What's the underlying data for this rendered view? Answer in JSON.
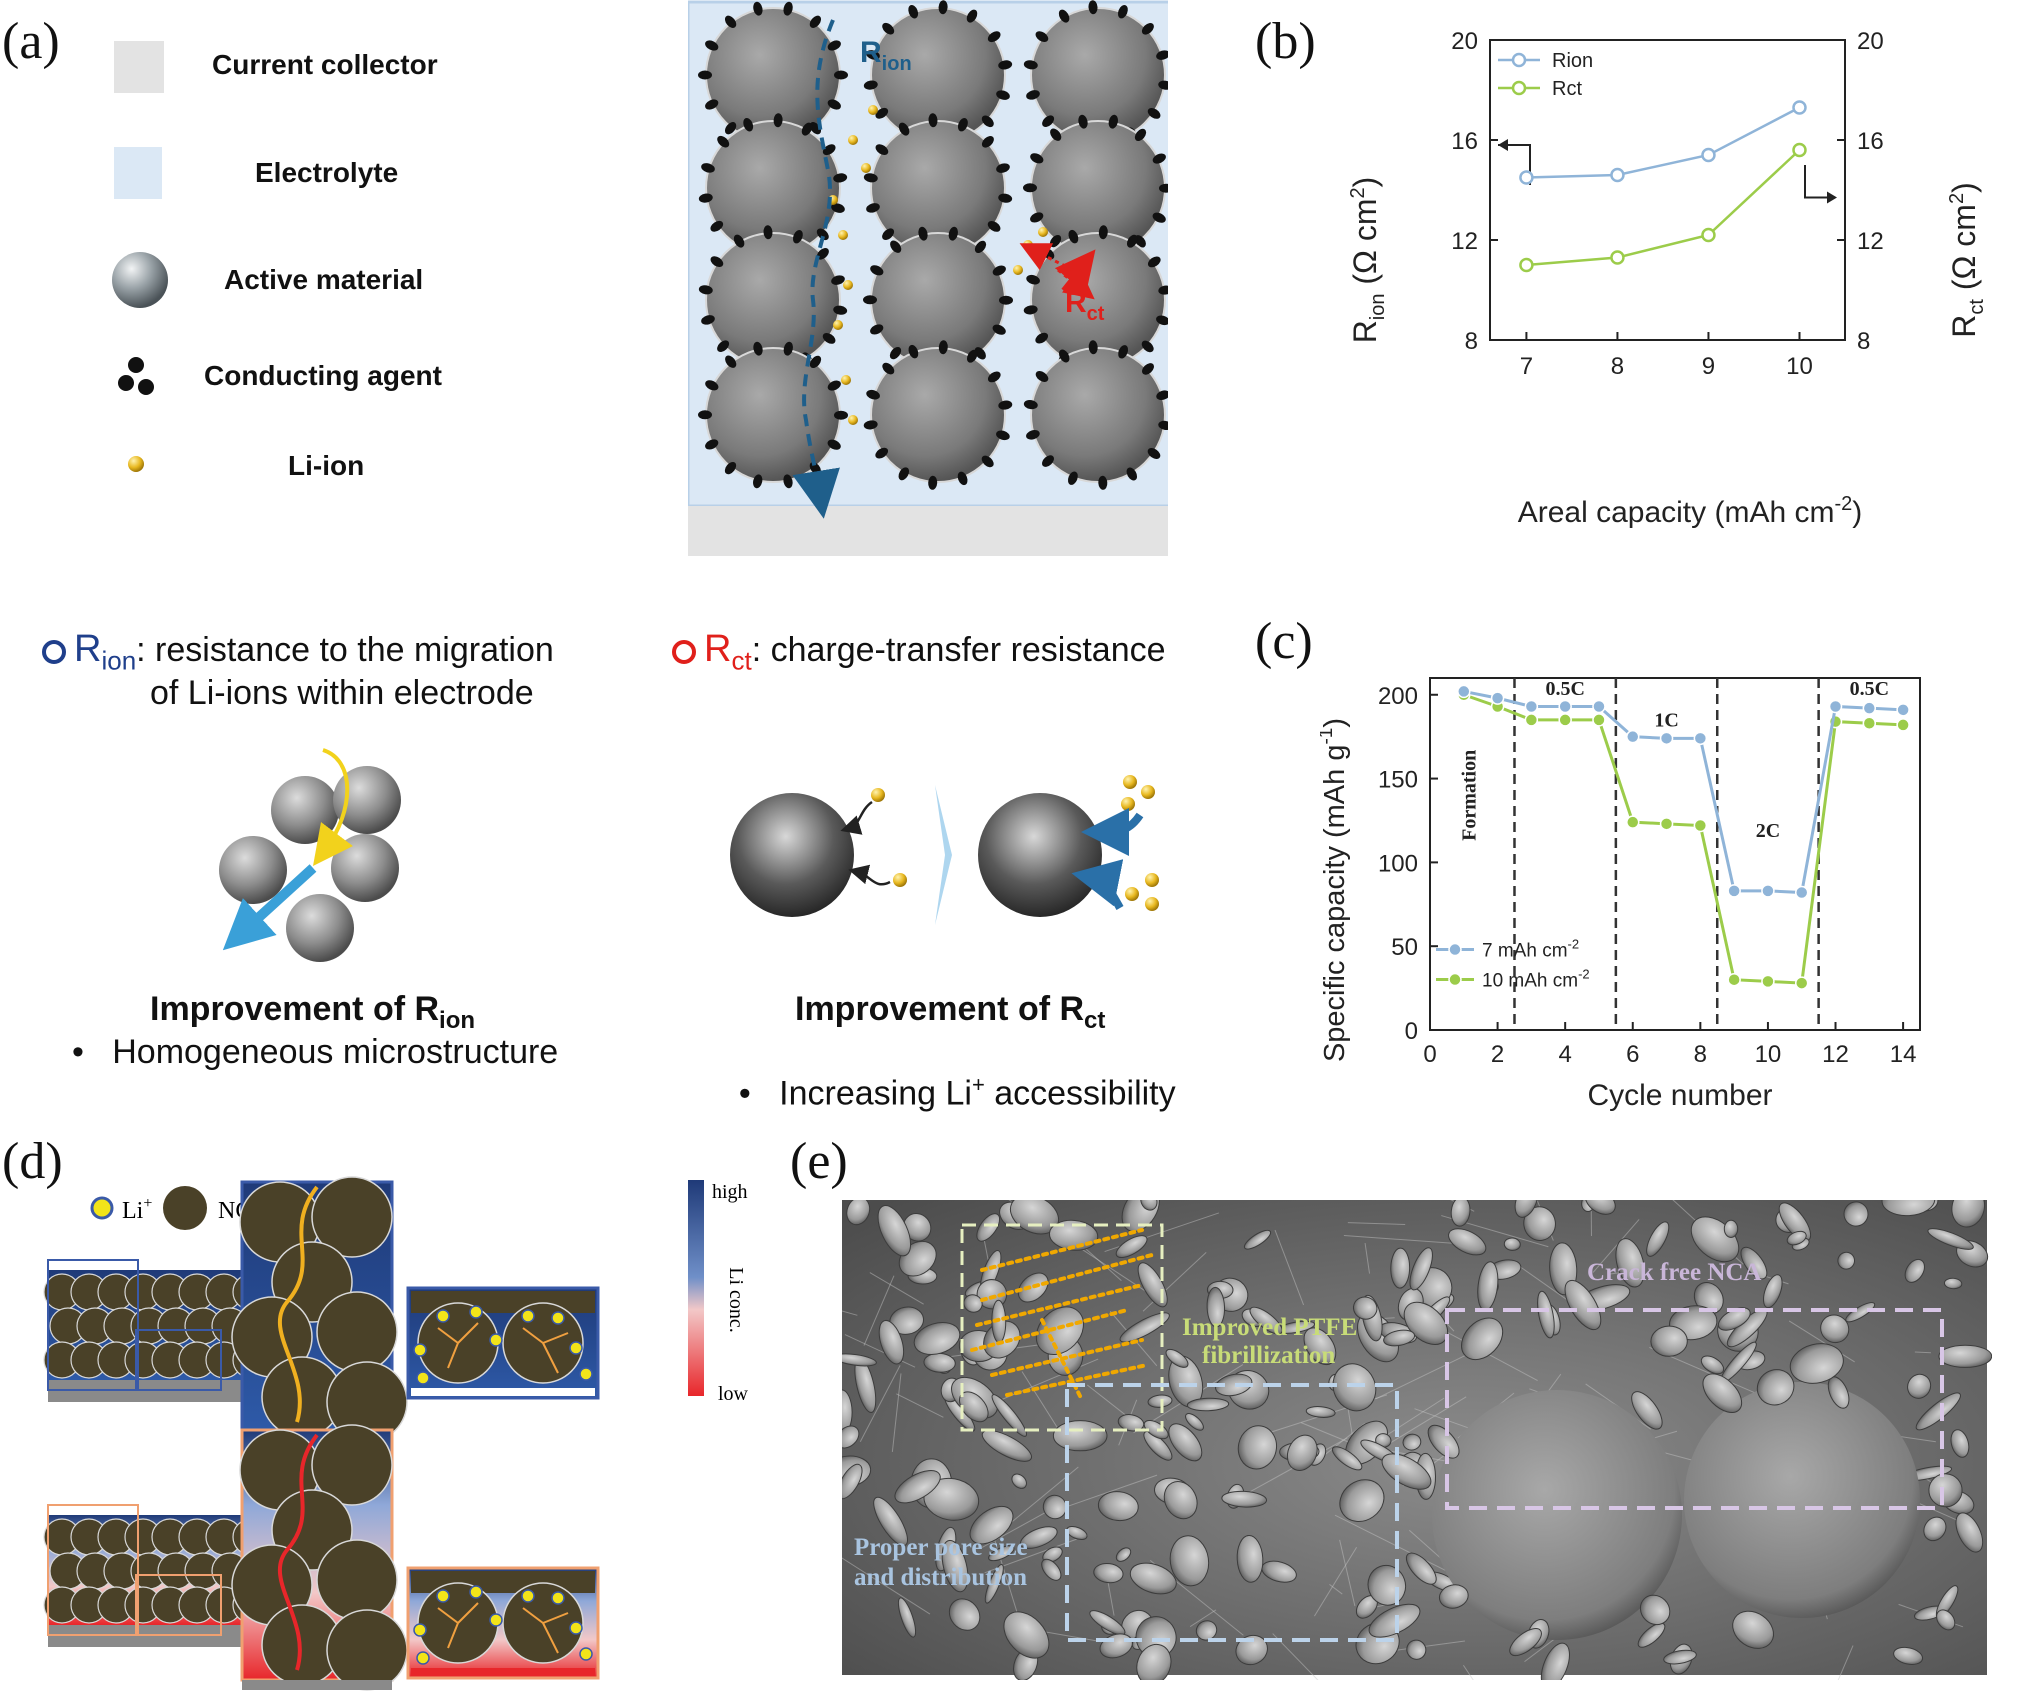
{
  "panel_a": {
    "letter": "(a)",
    "legend": [
      {
        "label": "Current collector",
        "icon": "gray-square-icon"
      },
      {
        "label": "Electrolyte",
        "icon": "light-blue-square-icon"
      },
      {
        "label": "Active material",
        "icon": "gray-sphere-icon"
      },
      {
        "label": "Conducting agent",
        "icon": "black-dots-icon"
      },
      {
        "label": "Li-ion",
        "icon": "gold-dot-icon"
      }
    ],
    "schematic": {
      "r_ion": "R",
      "r_ion_sub": "ion",
      "r_ct": "R",
      "r_ct_sub": "ct"
    },
    "definitions": {
      "rion_symbol": "R",
      "rion_sub": "ion",
      "rion_text_1": ": resistance to the migration",
      "rion_text_2": "of Li-ions within electrode",
      "rct_symbol": "R",
      "rct_sub": "ct",
      "rct_text": ": charge-transfer resistance"
    },
    "improvements": {
      "rion_title": "Improvement of R",
      "rion_title_sub": "ion",
      "rion_bullet": "•   Homogeneous microstructure",
      "rct_title": "Improvement of R",
      "rct_title_sub": "ct",
      "rct_bullet_pre": "•   Increasing Li",
      "rct_bullet_sup": "+",
      "rct_bullet_post": " accessibility"
    },
    "colors": {
      "electrolyte": "#dbe8f5",
      "collector": "#e3e3e3",
      "rion": "#1f5f8b",
      "rct": "#e0201b",
      "liion": "#e8b820"
    }
  },
  "panel_b": {
    "letter": "(b)",
    "chart_data": {
      "type": "line",
      "x": [
        7,
        8,
        9,
        10
      ],
      "xlim": [
        6.6,
        10.5
      ],
      "xticks": [
        "7",
        "8",
        "9",
        "10"
      ],
      "xlabel": "Areal capacity (mAh cm",
      "xlabel_sup": "-2",
      "xlabel_end": ")",
      "ylim": [
        8,
        20
      ],
      "yticks": [
        "8",
        "12",
        "16",
        "20"
      ],
      "ylabel_left": "R",
      "ylabel_left_sub": "ion",
      "ylabel_left_unit": " (Ω cm",
      "ylabel_sup": "2",
      "ylabel_right": "R",
      "ylabel_right_sub": "ct",
      "series": [
        {
          "name": "Rion",
          "color": "#8fb4d8",
          "axis": "left",
          "values": [
            14.5,
            14.6,
            15.4,
            17.3
          ]
        },
        {
          "name": "Rct",
          "color": "#9ccc4a",
          "axis": "right",
          "values": [
            11.0,
            11.3,
            12.2,
            15.6
          ]
        }
      ],
      "legend_position": "top-left",
      "grid": false
    }
  },
  "panel_c": {
    "letter": "(c)",
    "chart_data": {
      "type": "line",
      "x": [
        1,
        2,
        3,
        4,
        5,
        6,
        7,
        8,
        9,
        10,
        11,
        12,
        13,
        14
      ],
      "xlim": [
        0,
        14.5
      ],
      "xticks": [
        "0",
        "2",
        "4",
        "6",
        "8",
        "10",
        "12",
        "14"
      ],
      "ylim": [
        0,
        210
      ],
      "yticks": [
        "0",
        "50",
        "100",
        "150",
        "200"
      ],
      "xlabel": "Cycle number",
      "ylabel": "Specific capacity (mAh g",
      "ylabel_sup": "-1",
      "ylabel_end": ")",
      "series": [
        {
          "name": "7 mAh cm",
          "name_sup": "-2",
          "color": "#8fb4d8",
          "values": [
            202,
            198,
            193,
            193,
            193,
            175,
            174,
            174,
            83,
            83,
            82,
            193,
            192,
            191
          ]
        },
        {
          "name": "10 mAh cm",
          "name_sup": "-2",
          "color": "#9ccc4a",
          "values": [
            200,
            193,
            185,
            185,
            185,
            124,
            123,
            122,
            30,
            29,
            28,
            184,
            183,
            182
          ]
        }
      ],
      "dividers": [
        2.5,
        5.5,
        8.5,
        11.5
      ],
      "annotations": [
        {
          "text": "Formation",
          "x": 1.35,
          "y": 140,
          "rotate": true
        },
        {
          "text": "0.5C",
          "x": 4.0,
          "y": 200
        },
        {
          "text": "1C",
          "x": 7.0,
          "y": 181
        },
        {
          "text": "2C",
          "x": 10.0,
          "y": 115
        },
        {
          "text": "0.5C",
          "x": 13.0,
          "y": 200
        }
      ],
      "legend_position": "bottom-left",
      "grid": false
    }
  },
  "panel_d": {
    "letter": "(d)",
    "legend_li": "Li",
    "legend_li_sup": "+",
    "legend_nca": "NCA",
    "colorbar_high": "high",
    "colorbar_low": "low",
    "colorbar_label": "Li conc.",
    "colors": {
      "high": "#1f3a78",
      "low": "#e8262a",
      "particle": "#4a4128",
      "li": "#f2e419",
      "path_top": "#f0b020",
      "path_bottom": "#e8262a",
      "frame_top": "#3a5aa8",
      "frame_bottom": "#f0a070"
    }
  },
  "panel_e": {
    "letter": "(e)",
    "labels": {
      "ptfe_1": "Improved PTFE",
      "ptfe_2": "fibrillization",
      "crack": "Crack free NCA",
      "pore_1": "Proper pore size",
      "pore_2": "and distribution"
    },
    "colors": {
      "ptfe": "#c8dc78",
      "crack": "#c9b6d8",
      "pore": "#a9c4e0",
      "fibril": "#f0a800"
    }
  }
}
